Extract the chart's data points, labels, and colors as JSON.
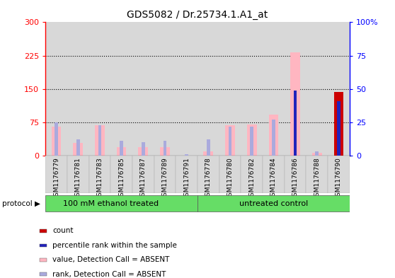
{
  "title": "GDS5082 / Dr.25734.1.A1_at",
  "samples": [
    "GSM1176779",
    "GSM1176781",
    "GSM1176783",
    "GSM1176785",
    "GSM1176787",
    "GSM1176789",
    "GSM1176791",
    "GSM1176778",
    "GSM1176780",
    "GSM1176782",
    "GSM1176784",
    "GSM1176786",
    "GSM1176788",
    "GSM1176790"
  ],
  "value_absent": [
    65,
    28,
    68,
    20,
    20,
    20,
    0,
    9,
    68,
    70,
    92,
    233,
    7,
    0
  ],
  "rank_absent_pct": [
    25,
    12,
    23,
    11,
    10,
    11,
    1,
    12,
    22,
    22,
    27,
    0,
    3,
    0
  ],
  "count_present": [
    0,
    0,
    0,
    0,
    0,
    0,
    0,
    0,
    0,
    0,
    0,
    0,
    0,
    143
  ],
  "rank_present_pct": [
    0,
    0,
    0,
    0,
    0,
    0,
    0,
    0,
    0,
    0,
    0,
    49,
    0,
    41
  ],
  "ylim_left": [
    0,
    300
  ],
  "ylim_right": [
    0,
    100
  ],
  "yticks_left": [
    0,
    75,
    150,
    225,
    300
  ],
  "yticks_right": [
    0,
    25,
    50,
    75,
    100
  ],
  "color_count": "#cc0000",
  "color_rank_present": "#2222bb",
  "color_value_absent": "#ffb6c1",
  "color_rank_absent": "#aaaadd",
  "group1_label": "100 mM ethanol treated",
  "group1_count": 7,
  "group2_label": "untreated control",
  "group2_count": 7,
  "legend": [
    {
      "label": "count",
      "color": "#cc0000"
    },
    {
      "label": "percentile rank within the sample",
      "color": "#2222bb"
    },
    {
      "label": "value, Detection Call = ABSENT",
      "color": "#ffb6c1"
    },
    {
      "label": "rank, Detection Call = ABSENT",
      "color": "#aaaadd"
    }
  ]
}
